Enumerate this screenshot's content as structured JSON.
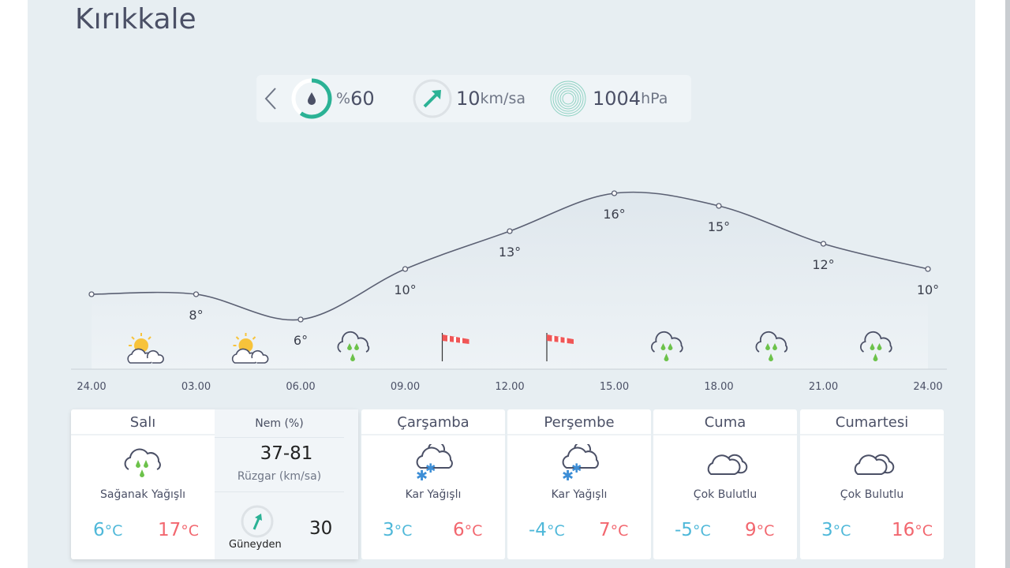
{
  "city": "Kırıkkale",
  "current": {
    "humidity_prefix": "%",
    "humidity": "60",
    "humidity_percent": 60,
    "wind": "10",
    "wind_unit": "km/sa",
    "pressure": "1004",
    "pressure_unit": "hPa"
  },
  "hourly": {
    "hours": [
      "24.00",
      "03.00",
      "06.00",
      "09.00",
      "12.00",
      "15.00",
      "18.00",
      "21.00",
      "24.00"
    ],
    "temps": [
      8,
      8,
      6,
      10,
      13,
      16,
      15,
      12,
      10
    ],
    "labels": [
      "",
      "8°",
      "6°",
      "10°",
      "13°",
      "16°",
      "15°",
      "12°",
      "10°"
    ],
    "icons": [
      "partly-sunny-icon",
      "partly-sunny-icon",
      "rain-icon",
      "wind-flag-icon",
      "wind-flag-icon",
      "rain-icon",
      "rain-icon",
      "rain-icon"
    ]
  },
  "today": {
    "day": "Salı",
    "condition": "Sağanak Yağışlı",
    "low": "6",
    "high": "17",
    "unit": "°C",
    "humidity_label": "Nem (%)",
    "humidity": "37-81",
    "wind_label": "Rüzgar (km/sa)",
    "wind_dir": "Güneyden",
    "wind": "30"
  },
  "days": [
    {
      "day": "Çarşamba",
      "condition": "Kar Yağışlı",
      "icon": "snow-icon",
      "low": "3",
      "high": "6"
    },
    {
      "day": "Perşembe",
      "condition": "Kar Yağışlı",
      "icon": "snow-icon",
      "low": "-4",
      "high": "7"
    },
    {
      "day": "Cuma",
      "condition": "Çok Bulutlu",
      "icon": "cloudy-icon",
      "low": "-5",
      "high": "9"
    },
    {
      "day": "Cumartesi",
      "condition": "Çok Bulutlu",
      "icon": "cloudy-icon",
      "low": "3",
      "high": "16"
    }
  ],
  "unit": "°C",
  "colors": {
    "accent": "#2bb295",
    "low": "#4fb8d9",
    "high": "#f2676f",
    "rain": "#6cc24a"
  }
}
